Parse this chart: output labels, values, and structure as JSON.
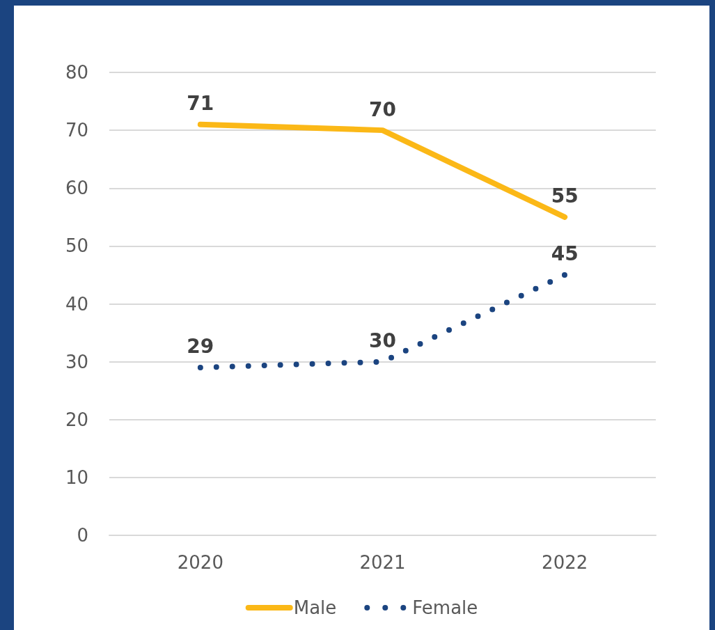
{
  "chart_data": {
    "type": "line",
    "categories": [
      "2020",
      "2021",
      "2022"
    ],
    "series": [
      {
        "name": "Male",
        "color": "#fbb817",
        "values": [
          71,
          70,
          55
        ],
        "line_style": "solid"
      },
      {
        "name": "Female",
        "color": "#1b4480",
        "values": [
          29,
          30,
          45
        ],
        "line_style": "dotted"
      }
    ],
    "ylim": [
      0,
      80
    ],
    "yticks": [
      0,
      10,
      20,
      30,
      40,
      50,
      60,
      70,
      80
    ],
    "grid": "y",
    "legend": "bottom",
    "marker": "none",
    "data_labels": true
  }
}
